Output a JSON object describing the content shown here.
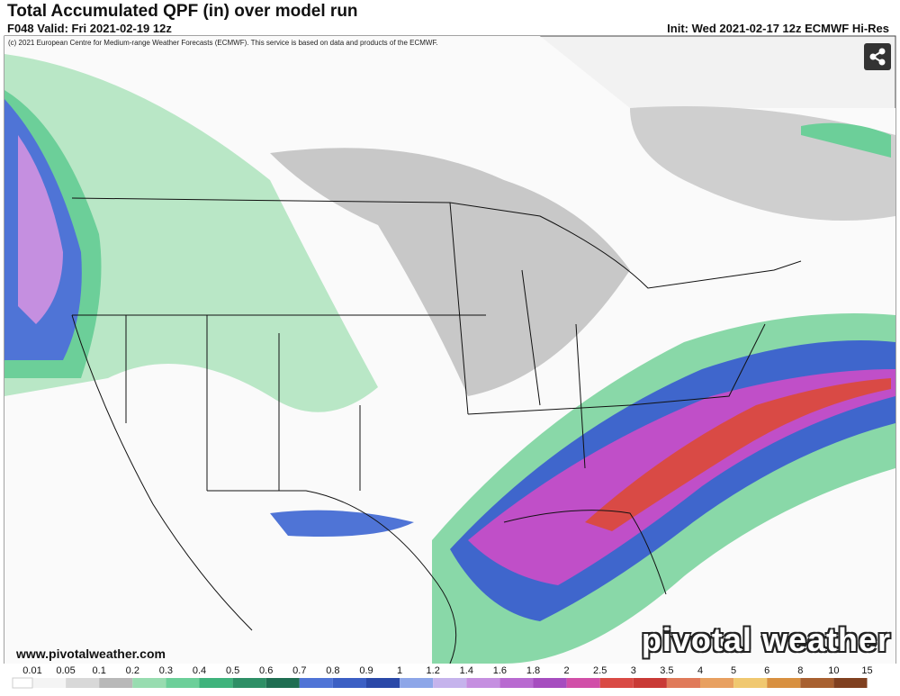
{
  "header": {
    "title": "Total Accumulated QPF (in) over model run",
    "valid": "F048 Valid: Fri 2021-02-19 12z",
    "init": "Init: Wed 2021-02-17 12z ECMWF Hi-Res",
    "copyright": "(c) 2021 European Centre for Medium-range Weather Forecasts (ECMWF). This service is based on data and products of the ECMWF."
  },
  "footer": {
    "url": "www.pivotalweather.com",
    "logo": "pivotal weather"
  },
  "legend": {
    "labels": [
      "0.01",
      "0.05",
      "0.1",
      "0.2",
      "0.3",
      "0.4",
      "0.5",
      "0.6",
      "0.7",
      "0.8",
      "0.9",
      "1",
      "1.2",
      "1.4",
      "1.6",
      "1.8",
      "2",
      "2.5",
      "3",
      "3.5",
      "4",
      "5",
      "6",
      "8",
      "10",
      "15"
    ]
  }
}
